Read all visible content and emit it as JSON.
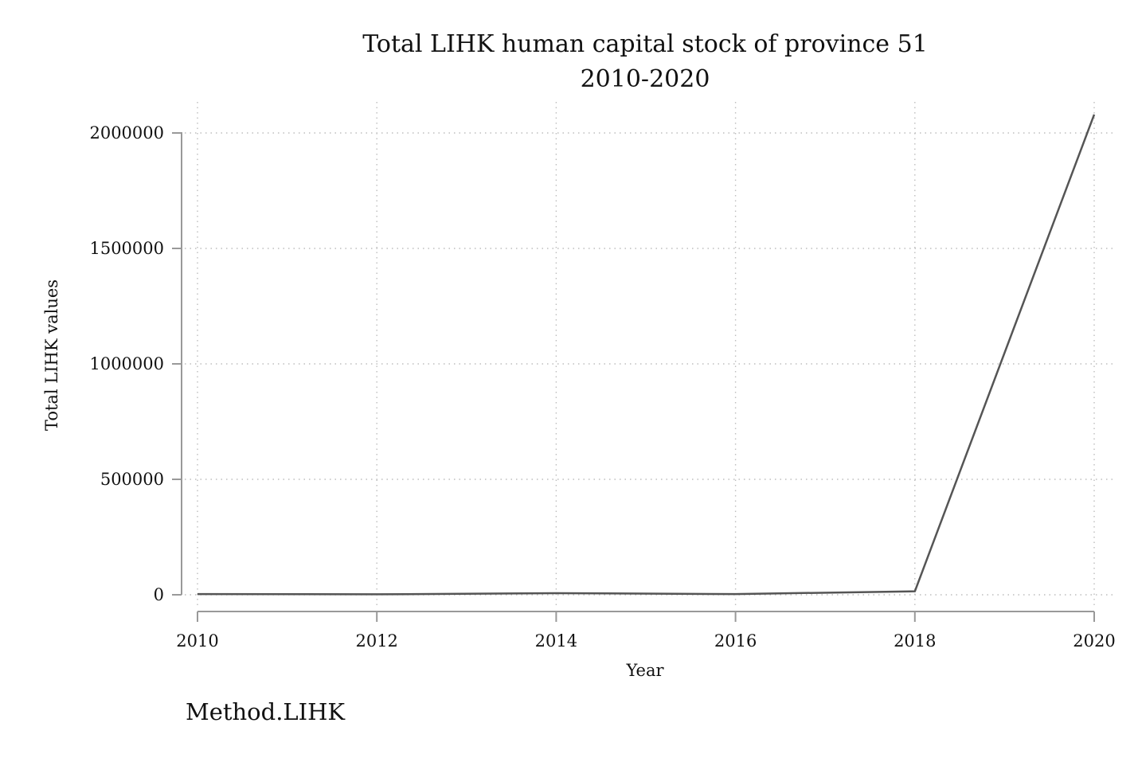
{
  "chart_data": {
    "type": "line",
    "title": "Total LIHK human capital stock of province 51",
    "subtitle": "2010-2020",
    "xlabel": "Year",
    "ylabel": "Total LIHK values",
    "note": "Method.LIHK",
    "x": [
      2010,
      2012,
      2014,
      2016,
      2018,
      2020
    ],
    "series": [
      {
        "values": [
          3000,
          2000,
          7000,
          3000,
          15000,
          2080000
        ]
      }
    ],
    "xlim": [
      2010,
      2020
    ],
    "ylim": [
      0,
      2000000
    ],
    "xticks": [
      "2010",
      "2012",
      "2014",
      "2016",
      "2018",
      "2020"
    ],
    "yticks": [
      "0",
      "500000",
      "1000000",
      "1500000",
      "2000000"
    ],
    "grid": true,
    "line_color": "#555555"
  }
}
